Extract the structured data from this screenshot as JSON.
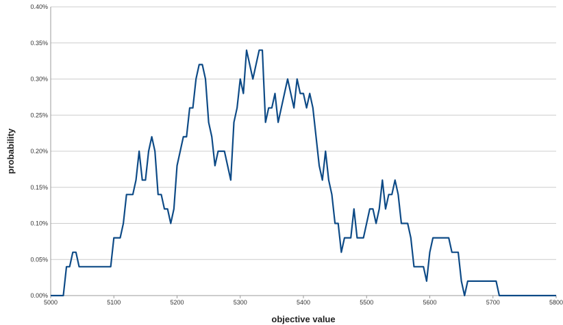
{
  "chart_data": {
    "type": "line",
    "title": "",
    "xlabel": "objective value",
    "ylabel": "probability",
    "xlim": [
      5000,
      5800
    ],
    "ylim": [
      0,
      0.004
    ],
    "x_ticks": [
      5000,
      5100,
      5200,
      5300,
      5400,
      5500,
      5600,
      5700,
      5800
    ],
    "x_tick_labels": [
      "5000",
      "5100",
      "5200",
      "5300",
      "5400",
      "5500",
      "5600",
      "5700",
      "5800"
    ],
    "y_ticks": [
      0,
      0.0005,
      0.001,
      0.0015,
      0.002,
      0.0025,
      0.003,
      0.0035,
      0.004
    ],
    "y_tick_labels": [
      "0.00%",
      "0.05%",
      "0.10%",
      "0.15%",
      "0.20%",
      "0.25%",
      "0.30%",
      "0.35%",
      "0.40%"
    ],
    "grid": "horizontal",
    "legend": "none",
    "series_color": "#0d4a86",
    "grid_color": "#cccccc",
    "series": [
      {
        "points": [
          [
            5000,
            0
          ],
          [
            5010,
            0
          ],
          [
            5020,
            0
          ],
          [
            5025,
            0.0004
          ],
          [
            5030,
            0.0004
          ],
          [
            5035,
            0.0006
          ],
          [
            5040,
            0.0006
          ],
          [
            5045,
            0.0004
          ],
          [
            5050,
            0.0004
          ],
          [
            5060,
            0.0004
          ],
          [
            5070,
            0.0004
          ],
          [
            5080,
            0.0004
          ],
          [
            5090,
            0.0004
          ],
          [
            5095,
            0.0004
          ],
          [
            5100,
            0.0008
          ],
          [
            5105,
            0.0008
          ],
          [
            5110,
            0.0008
          ],
          [
            5115,
            0.001
          ],
          [
            5120,
            0.0014
          ],
          [
            5125,
            0.0014
          ],
          [
            5130,
            0.0014
          ],
          [
            5135,
            0.0016
          ],
          [
            5140,
            0.002
          ],
          [
            5145,
            0.0016
          ],
          [
            5150,
            0.0016
          ],
          [
            5155,
            0.002
          ],
          [
            5160,
            0.0022
          ],
          [
            5165,
            0.002
          ],
          [
            5170,
            0.0014
          ],
          [
            5175,
            0.0014
          ],
          [
            5180,
            0.0012
          ],
          [
            5185,
            0.0012
          ],
          [
            5190,
            0.001
          ],
          [
            5195,
            0.0012
          ],
          [
            5200,
            0.0018
          ],
          [
            5205,
            0.002
          ],
          [
            5210,
            0.0022
          ],
          [
            5215,
            0.0022
          ],
          [
            5220,
            0.0026
          ],
          [
            5225,
            0.0026
          ],
          [
            5230,
            0.003
          ],
          [
            5235,
            0.0032
          ],
          [
            5240,
            0.0032
          ],
          [
            5245,
            0.003
          ],
          [
            5250,
            0.0024
          ],
          [
            5255,
            0.0022
          ],
          [
            5260,
            0.0018
          ],
          [
            5265,
            0.002
          ],
          [
            5270,
            0.002
          ],
          [
            5275,
            0.002
          ],
          [
            5280,
            0.0018
          ],
          [
            5285,
            0.0016
          ],
          [
            5290,
            0.0024
          ],
          [
            5295,
            0.0026
          ],
          [
            5300,
            0.003
          ],
          [
            5305,
            0.0028
          ],
          [
            5310,
            0.0034
          ],
          [
            5315,
            0.0032
          ],
          [
            5320,
            0.003
          ],
          [
            5325,
            0.0032
          ],
          [
            5330,
            0.0034
          ],
          [
            5335,
            0.0034
          ],
          [
            5340,
            0.0024
          ],
          [
            5345,
            0.0026
          ],
          [
            5350,
            0.0026
          ],
          [
            5355,
            0.0028
          ],
          [
            5360,
            0.0024
          ],
          [
            5365,
            0.0026
          ],
          [
            5370,
            0.0028
          ],
          [
            5375,
            0.003
          ],
          [
            5380,
            0.0028
          ],
          [
            5385,
            0.0026
          ],
          [
            5390,
            0.003
          ],
          [
            5395,
            0.0028
          ],
          [
            5400,
            0.0028
          ],
          [
            5405,
            0.0026
          ],
          [
            5410,
            0.0028
          ],
          [
            5415,
            0.0026
          ],
          [
            5420,
            0.0022
          ],
          [
            5425,
            0.0018
          ],
          [
            5430,
            0.0016
          ],
          [
            5435,
            0.002
          ],
          [
            5440,
            0.0016
          ],
          [
            5445,
            0.0014
          ],
          [
            5450,
            0.001
          ],
          [
            5455,
            0.001
          ],
          [
            5460,
            0.0006
          ],
          [
            5465,
            0.0008
          ],
          [
            5470,
            0.0008
          ],
          [
            5475,
            0.0008
          ],
          [
            5480,
            0.0012
          ],
          [
            5485,
            0.0008
          ],
          [
            5490,
            0.0008
          ],
          [
            5495,
            0.0008
          ],
          [
            5500,
            0.001
          ],
          [
            5505,
            0.0012
          ],
          [
            5510,
            0.0012
          ],
          [
            5515,
            0.001
          ],
          [
            5520,
            0.0012
          ],
          [
            5525,
            0.0016
          ],
          [
            5530,
            0.0012
          ],
          [
            5535,
            0.0014
          ],
          [
            5540,
            0.0014
          ],
          [
            5545,
            0.0016
          ],
          [
            5550,
            0.0014
          ],
          [
            5555,
            0.001
          ],
          [
            5560,
            0.001
          ],
          [
            5565,
            0.001
          ],
          [
            5570,
            0.0008
          ],
          [
            5575,
            0.0004
          ],
          [
            5580,
            0.0004
          ],
          [
            5585,
            0.0004
          ],
          [
            5590,
            0.0004
          ],
          [
            5595,
            0.0002
          ],
          [
            5600,
            0.0006
          ],
          [
            5605,
            0.0008
          ],
          [
            5610,
            0.0008
          ],
          [
            5615,
            0.0008
          ],
          [
            5620,
            0.0008
          ],
          [
            5625,
            0.0008
          ],
          [
            5630,
            0.0008
          ],
          [
            5635,
            0.0006
          ],
          [
            5640,
            0.0006
          ],
          [
            5645,
            0.0006
          ],
          [
            5650,
            0.0002
          ],
          [
            5655,
            0
          ],
          [
            5660,
            0.0002
          ],
          [
            5665,
            0.0002
          ],
          [
            5670,
            0.0002
          ],
          [
            5680,
            0.0002
          ],
          [
            5690,
            0.0002
          ],
          [
            5700,
            0.0002
          ],
          [
            5705,
            0.0002
          ],
          [
            5710,
            0
          ],
          [
            5720,
            0
          ],
          [
            5730,
            0
          ],
          [
            5740,
            0
          ],
          [
            5750,
            0
          ],
          [
            5760,
            0
          ],
          [
            5770,
            0
          ],
          [
            5780,
            0
          ],
          [
            5790,
            0
          ],
          [
            5800,
            0
          ]
        ]
      }
    ]
  }
}
